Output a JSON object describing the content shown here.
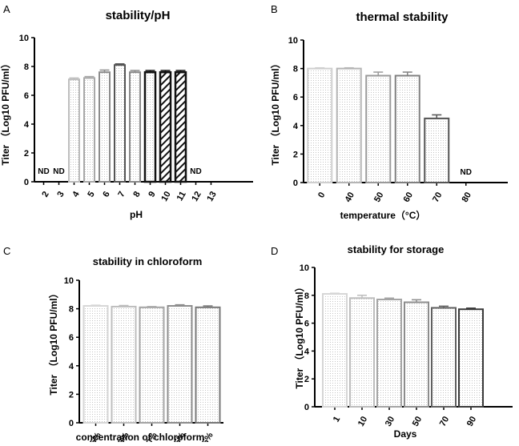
{
  "chart_data": [
    {
      "panel": "A",
      "type": "bar",
      "title": "stability/pH",
      "xlabel": "pH",
      "ylabel": "Titer （Log10 PFU/ml）",
      "ylim": [
        0,
        10
      ],
      "yticks": [
        0,
        2,
        4,
        6,
        8,
        10
      ],
      "categories": [
        "2",
        "3",
        "4",
        "5",
        "6",
        "7",
        "8",
        "9",
        "10",
        "11",
        "12",
        "13"
      ],
      "values": [
        null,
        null,
        7.1,
        7.2,
        7.6,
        8.1,
        7.6,
        7.6,
        7.6,
        7.6,
        null,
        null
      ],
      "errors": [
        0,
        0,
        0.1,
        0.1,
        0.15,
        0.08,
        0.12,
        0.12,
        0.12,
        0.12,
        0,
        0
      ],
      "annotations": {
        "0": "ND",
        "1": "ND",
        "10": "ND"
      },
      "colors": {
        "edges": [
          "#000000",
          "#000000",
          "#bdbdbd",
          "#a8a8a8",
          "#8c8c8c",
          "#555555",
          "#8a8a8a",
          "#111111",
          "#111111",
          "#111111",
          "#000000",
          "#000000"
        ],
        "fills": [
          "dots",
          "dots",
          "dots",
          "dots",
          "dots",
          "dots",
          "dots",
          "dots",
          "hatch",
          "hatch",
          "dots",
          "dots"
        ]
      }
    },
    {
      "panel": "B",
      "type": "bar",
      "title": "thermal stability",
      "xlabel": "temperature（°C）",
      "ylabel": "Titer （Log10 PFU/ml）",
      "ylim": [
        0,
        10
      ],
      "yticks": [
        0,
        2,
        4,
        6,
        8,
        10
      ],
      "categories": [
        "0",
        "40",
        "50",
        "60",
        "70",
        "80"
      ],
      "values": [
        8.0,
        8.0,
        7.5,
        7.5,
        4.5,
        null
      ],
      "errors": [
        0.05,
        0.05,
        0.25,
        0.25,
        0.25,
        0
      ],
      "annotations": {
        "5": "ND"
      },
      "colors": {
        "edges": [
          "#cfcfcf",
          "#b5b5b5",
          "#9a9a9a",
          "#808080",
          "#555555",
          "#000000"
        ],
        "fills": [
          "dots",
          "dots",
          "dots",
          "dots",
          "dots",
          "dots"
        ]
      }
    },
    {
      "panel": "C",
      "type": "bar",
      "title": "stability in chloroform",
      "xlabel": "concentration of chloroform",
      "ylabel": "Titer （Log10 PFU/ml）",
      "ylim": [
        0,
        10
      ],
      "yticks": [
        0,
        2,
        4,
        6,
        8,
        10
      ],
      "categories": [
        "5%",
        "25%",
        "50%",
        "75%",
        "95%"
      ],
      "values": [
        8.2,
        8.15,
        8.1,
        8.2,
        8.1
      ],
      "errors": [
        0.05,
        0.08,
        0.05,
        0.08,
        0.1
      ],
      "annotations": {},
      "colors": {
        "edges": [
          "#d6d6d6",
          "#bdbdbd",
          "#a4a4a4",
          "#8c8c8c",
          "#777777"
        ],
        "fills": [
          "dots",
          "dots",
          "dots",
          "dots",
          "dots"
        ]
      }
    },
    {
      "panel": "D",
      "type": "bar",
      "title": "stability for storage",
      "xlabel": "Days",
      "ylabel": "Titer （Log10 PFU/ml）",
      "ylim": [
        0,
        10
      ],
      "yticks": [
        0,
        2,
        4,
        6,
        8,
        10
      ],
      "categories": [
        "1",
        "10",
        "30",
        "50",
        "70",
        "90"
      ],
      "values": [
        8.1,
        7.8,
        7.7,
        7.5,
        7.1,
        7.0
      ],
      "errors": [
        0.05,
        0.2,
        0.1,
        0.18,
        0.12,
        0.08
      ],
      "annotations": {},
      "colors": {
        "edges": [
          "#d6d6d6",
          "#bdbdbd",
          "#a4a4a4",
          "#8c8c8c",
          "#606060",
          "#3a3a3a"
        ],
        "fills": [
          "dots",
          "dots",
          "dots",
          "dots",
          "dots",
          "dots"
        ]
      }
    }
  ]
}
